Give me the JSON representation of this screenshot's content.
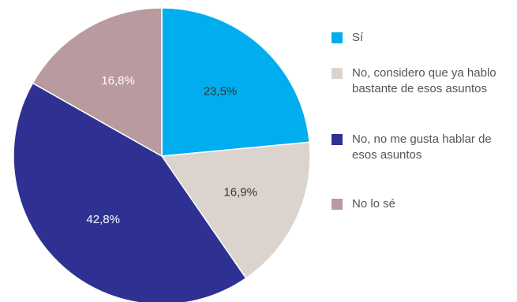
{
  "chart_data": {
    "type": "pie",
    "title": "",
    "start_angle_deg": 0,
    "direction": "clockwise",
    "slices": [
      {
        "label": "Sí",
        "value": 23.5,
        "value_text": "23,5%",
        "color": "#00adee",
        "text_color": "#333333"
      },
      {
        "label": "No, considero que ya hablo bastante de esos asuntos",
        "value": 16.9,
        "value_text": "16,9%",
        "color": "#dbd3cd",
        "text_color": "#333333"
      },
      {
        "label": "No, no me gusta hablar de esos asuntos",
        "value": 42.8,
        "value_text": "42,8%",
        "color": "#2e3192",
        "text_color": "#ffffff"
      },
      {
        "label": "No lo sé",
        "value": 16.8,
        "value_text": "16,8%",
        "color": "#b99a9e",
        "text_color": "#ffffff"
      }
    ],
    "legend_position": "right"
  }
}
